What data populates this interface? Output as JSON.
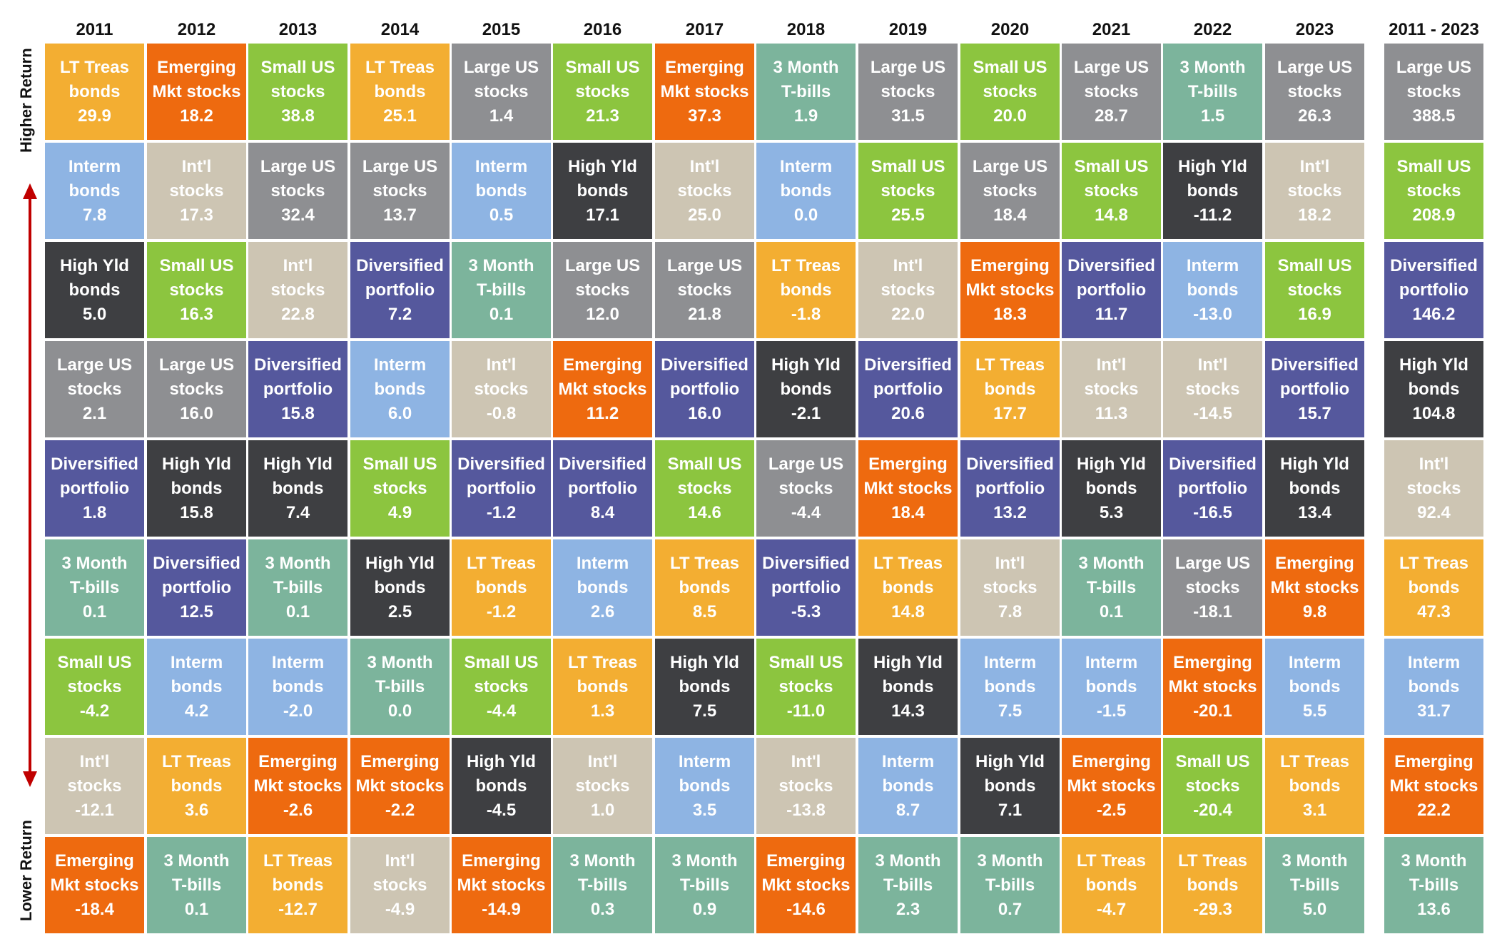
{
  "axis": {
    "top_label": "Higher Return",
    "bottom_label": "Lower Return"
  },
  "colors": {
    "LT Treas bonds": "#f3ae32",
    "Emerging Mkt stocks": "#ee6a0f",
    "Small US stocks": "#8cc53f",
    "Large US stocks": "#8e8f92",
    "3 Month T-bills": "#7cb49c",
    "Interm bonds": "#8eb4e3",
    "Int'l stocks": "#cdc5b3",
    "High Yld bonds": "#3e3f42",
    "Diversified portfolio": "#55589d"
  },
  "chart_data": {
    "type": "table",
    "columns": [
      {
        "header": "2011",
        "cells": [
          {
            "asset": "LT Treas bonds",
            "value": 29.9
          },
          {
            "asset": "Interm bonds",
            "value": 7.8
          },
          {
            "asset": "High Yld bonds",
            "value": 5.0
          },
          {
            "asset": "Large US stocks",
            "value": 2.1
          },
          {
            "asset": "Diversified portfolio",
            "value": 1.8
          },
          {
            "asset": "3 Month T-bills",
            "value": 0.1
          },
          {
            "asset": "Small US stocks",
            "value": -4.2
          },
          {
            "asset": "Int'l stocks",
            "value": -12.1
          },
          {
            "asset": "Emerging Mkt stocks",
            "value": -18.4
          }
        ]
      },
      {
        "header": "2012",
        "cells": [
          {
            "asset": "Emerging Mkt stocks",
            "value": 18.2
          },
          {
            "asset": "Int'l stocks",
            "value": 17.3
          },
          {
            "asset": "Small US stocks",
            "value": 16.3
          },
          {
            "asset": "Large US stocks",
            "value": 16.0
          },
          {
            "asset": "High Yld bonds",
            "value": 15.8
          },
          {
            "asset": "Diversified portfolio",
            "value": 12.5
          },
          {
            "asset": "Interm bonds",
            "value": 4.2
          },
          {
            "asset": "LT Treas bonds",
            "value": 3.6
          },
          {
            "asset": "3 Month T-bills",
            "value": 0.1
          }
        ]
      },
      {
        "header": "2013",
        "cells": [
          {
            "asset": "Small US stocks",
            "value": 38.8
          },
          {
            "asset": "Large US stocks",
            "value": 32.4
          },
          {
            "asset": "Int'l stocks",
            "value": 22.8
          },
          {
            "asset": "Diversified portfolio",
            "value": 15.8
          },
          {
            "asset": "High Yld bonds",
            "value": 7.4
          },
          {
            "asset": "3 Month T-bills",
            "value": 0.1
          },
          {
            "asset": "Interm bonds",
            "value": -2.0
          },
          {
            "asset": "Emerging Mkt stocks",
            "value": -2.6
          },
          {
            "asset": "LT Treas bonds",
            "value": -12.7
          }
        ]
      },
      {
        "header": "2014",
        "cells": [
          {
            "asset": "LT Treas bonds",
            "value": 25.1
          },
          {
            "asset": "Large US stocks",
            "value": 13.7
          },
          {
            "asset": "Diversified portfolio",
            "value": 7.2
          },
          {
            "asset": "Interm bonds",
            "value": 6.0
          },
          {
            "asset": "Small US stocks",
            "value": 4.9
          },
          {
            "asset": "High Yld bonds",
            "value": 2.5
          },
          {
            "asset": "3 Month T-bills",
            "value": 0.0
          },
          {
            "asset": "Emerging Mkt stocks",
            "value": -2.2
          },
          {
            "asset": "Int'l stocks",
            "value": -4.9
          }
        ]
      },
      {
        "header": "2015",
        "cells": [
          {
            "asset": "Large US stocks",
            "value": 1.4
          },
          {
            "asset": "Interm bonds",
            "value": 0.5
          },
          {
            "asset": "3 Month T-bills",
            "value": 0.1
          },
          {
            "asset": "Int'l stocks",
            "value": -0.8
          },
          {
            "asset": "Diversified portfolio",
            "value": -1.2
          },
          {
            "asset": "LT Treas bonds",
            "value": -1.2
          },
          {
            "asset": "Small US stocks",
            "value": -4.4
          },
          {
            "asset": "High Yld bonds",
            "value": -4.5
          },
          {
            "asset": "Emerging Mkt stocks",
            "value": -14.9
          }
        ]
      },
      {
        "header": "2016",
        "cells": [
          {
            "asset": "Small US stocks",
            "value": 21.3
          },
          {
            "asset": "High Yld bonds",
            "value": 17.1
          },
          {
            "asset": "Large US stocks",
            "value": 12.0
          },
          {
            "asset": "Emerging Mkt stocks",
            "value": 11.2
          },
          {
            "asset": "Diversified portfolio",
            "value": 8.4
          },
          {
            "asset": "Interm bonds",
            "value": 2.6
          },
          {
            "asset": "LT Treas bonds",
            "value": 1.3
          },
          {
            "asset": "Int'l stocks",
            "value": 1.0
          },
          {
            "asset": "3 Month T-bills",
            "value": 0.3
          }
        ]
      },
      {
        "header": "2017",
        "cells": [
          {
            "asset": "Emerging Mkt stocks",
            "value": 37.3
          },
          {
            "asset": "Int'l stocks",
            "value": 25.0
          },
          {
            "asset": "Large US stocks",
            "value": 21.8
          },
          {
            "asset": "Diversified portfolio",
            "value": 16.0
          },
          {
            "asset": "Small US stocks",
            "value": 14.6
          },
          {
            "asset": "LT Treas bonds",
            "value": 8.5
          },
          {
            "asset": "High Yld bonds",
            "value": 7.5
          },
          {
            "asset": "Interm bonds",
            "value": 3.5
          },
          {
            "asset": "3 Month T-bills",
            "value": 0.9
          }
        ]
      },
      {
        "header": "2018",
        "cells": [
          {
            "asset": "3 Month T-bills",
            "value": 1.9
          },
          {
            "asset": "Interm bonds",
            "value": 0.0
          },
          {
            "asset": "LT Treas bonds",
            "value": -1.8
          },
          {
            "asset": "High Yld bonds",
            "value": -2.1
          },
          {
            "asset": "Large US stocks",
            "value": -4.4
          },
          {
            "asset": "Diversified portfolio",
            "value": -5.3
          },
          {
            "asset": "Small US stocks",
            "value": -11.0
          },
          {
            "asset": "Int'l stocks",
            "value": -13.8
          },
          {
            "asset": "Emerging Mkt stocks",
            "value": -14.6
          }
        ]
      },
      {
        "header": "2019",
        "cells": [
          {
            "asset": "Large US stocks",
            "value": 31.5
          },
          {
            "asset": "Small US stocks",
            "value": 25.5
          },
          {
            "asset": "Int'l stocks",
            "value": 22.0
          },
          {
            "asset": "Diversified portfolio",
            "value": 20.6
          },
          {
            "asset": "Emerging Mkt stocks",
            "value": 18.4
          },
          {
            "asset": "LT Treas bonds",
            "value": 14.8
          },
          {
            "asset": "High Yld bonds",
            "value": 14.3
          },
          {
            "asset": "Interm bonds",
            "value": 8.7
          },
          {
            "asset": "3 Month T-bills",
            "value": 2.3
          }
        ]
      },
      {
        "header": "2020",
        "cells": [
          {
            "asset": "Small US stocks",
            "value": 20.0
          },
          {
            "asset": "Large US stocks",
            "value": 18.4
          },
          {
            "asset": "Emerging Mkt stocks",
            "value": 18.3
          },
          {
            "asset": "LT Treas bonds",
            "value": 17.7
          },
          {
            "asset": "Diversified portfolio",
            "value": 13.2
          },
          {
            "asset": "Int'l stocks",
            "value": 7.8
          },
          {
            "asset": "Interm bonds",
            "value": 7.5
          },
          {
            "asset": "High Yld bonds",
            "value": 7.1
          },
          {
            "asset": "3 Month T-bills",
            "value": 0.7
          }
        ]
      },
      {
        "header": "2021",
        "cells": [
          {
            "asset": "Large US stocks",
            "value": 28.7
          },
          {
            "asset": "Small US stocks",
            "value": 14.8
          },
          {
            "asset": "Diversified portfolio",
            "value": 11.7
          },
          {
            "asset": "Int'l stocks",
            "value": 11.3
          },
          {
            "asset": "High Yld bonds",
            "value": 5.3
          },
          {
            "asset": "3 Month T-bills",
            "value": 0.1
          },
          {
            "asset": "Interm bonds",
            "value": -1.5
          },
          {
            "asset": "Emerging Mkt stocks",
            "value": -2.5
          },
          {
            "asset": "LT Treas bonds",
            "value": -4.7
          }
        ]
      },
      {
        "header": "2022",
        "cells": [
          {
            "asset": "3 Month T-bills",
            "value": 1.5
          },
          {
            "asset": "High Yld bonds",
            "value": -11.2
          },
          {
            "asset": "Interm bonds",
            "value": -13.0
          },
          {
            "asset": "Int'l stocks",
            "value": -14.5
          },
          {
            "asset": "Diversified portfolio",
            "value": -16.5
          },
          {
            "asset": "Large US stocks",
            "value": -18.1
          },
          {
            "asset": "Emerging Mkt stocks",
            "value": -20.1
          },
          {
            "asset": "Small US stocks",
            "value": -20.4
          },
          {
            "asset": "LT Treas bonds",
            "value": -29.3
          }
        ]
      },
      {
        "header": "2023",
        "cells": [
          {
            "asset": "Large US stocks",
            "value": 26.3
          },
          {
            "asset": "Int'l stocks",
            "value": 18.2
          },
          {
            "asset": "Small US stocks",
            "value": 16.9
          },
          {
            "asset": "Diversified portfolio",
            "value": 15.7
          },
          {
            "asset": "High Yld bonds",
            "value": 13.4
          },
          {
            "asset": "Emerging Mkt stocks",
            "value": 9.8
          },
          {
            "asset": "Interm bonds",
            "value": 5.5
          },
          {
            "asset": "LT Treas bonds",
            "value": 3.1
          },
          {
            "asset": "3 Month T-bills",
            "value": 5.0
          }
        ]
      },
      {
        "header": "2011 - 2023",
        "cells": [
          {
            "asset": "Large US stocks",
            "value": 388.5
          },
          {
            "asset": "Small US stocks",
            "value": 208.9
          },
          {
            "asset": "Diversified portfolio",
            "value": 146.2
          },
          {
            "asset": "High Yld bonds",
            "value": 104.8
          },
          {
            "asset": "Int'l stocks",
            "value": 92.4
          },
          {
            "asset": "LT Treas bonds",
            "value": 47.3
          },
          {
            "asset": "Interm bonds",
            "value": 31.7
          },
          {
            "asset": "Emerging Mkt stocks",
            "value": 22.2
          },
          {
            "asset": "3 Month T-bills",
            "value": 13.6
          }
        ]
      }
    ]
  }
}
